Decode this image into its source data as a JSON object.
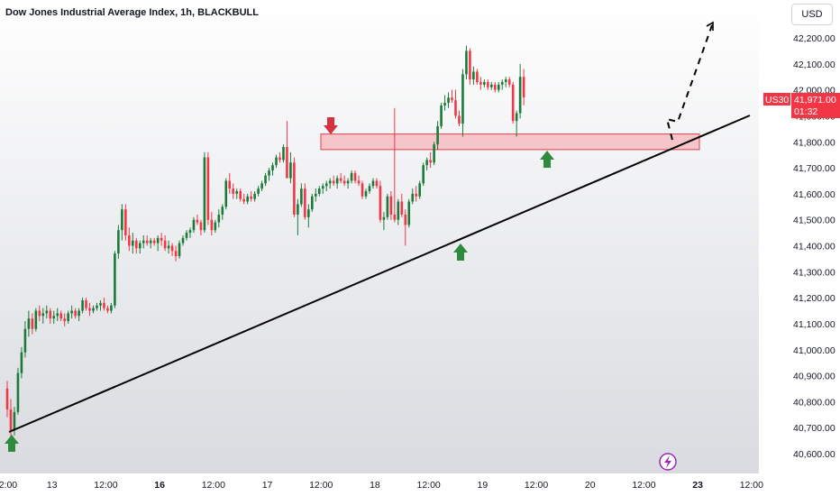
{
  "header": {
    "title": "Dow Jones Industrial Average Index, 1h, BLACKBULL",
    "currency": "USD"
  },
  "price_label": {
    "symbol": "US30",
    "price": "41,971.00",
    "countdown": "01:32",
    "color": "#f23645"
  },
  "colors": {
    "up": "#1b7a3a",
    "down": "#f23645",
    "zone_fill": "#f5b5b9",
    "zone_stroke": "#e04050",
    "trendline": "#000000",
    "arrow_up": "#2e8b3e",
    "arrow_down": "#d93040"
  },
  "icons": {
    "lightning": "lightning-icon"
  },
  "chart_data": {
    "type": "candlestick",
    "title": "Dow Jones Industrial Average Index, 1h, BLACKBULL",
    "ylim": [
      40550,
      42300
    ],
    "y_ticks": [
      "42,200.00",
      "42,100.00",
      "42,000.00",
      "41,900.00",
      "41,800.00",
      "41,700.00",
      "41,600.00",
      "41,500.00",
      "41,400.00",
      "41,300.00",
      "41,200.00",
      "41,100.00",
      "41,000.00",
      "40,900.00",
      "40,800.00",
      "40,700.00",
      "40,600.00"
    ],
    "y_tick_values": [
      42200,
      42100,
      42000,
      41900,
      41800,
      41700,
      41600,
      41500,
      41400,
      41300,
      41200,
      41100,
      41000,
      40900,
      40800,
      40700,
      40600
    ],
    "x_ticks": [
      {
        "label": "12:00",
        "bold": false,
        "idx": 0
      },
      {
        "label": "13",
        "bold": false,
        "idx": 13
      },
      {
        "label": "12:00",
        "bold": false,
        "idx": 28
      },
      {
        "label": "16",
        "bold": true,
        "idx": 43
      },
      {
        "label": "12:00",
        "bold": false,
        "idx": 58
      },
      {
        "label": "17",
        "bold": false,
        "idx": 73
      },
      {
        "label": "12:00",
        "bold": false,
        "idx": 88
      },
      {
        "label": "18",
        "bold": false,
        "idx": 103
      },
      {
        "label": "12:00",
        "bold": false,
        "idx": 118
      },
      {
        "label": "19",
        "bold": false,
        "idx": 133
      },
      {
        "label": "12:00",
        "bold": false,
        "idx": 148
      },
      {
        "label": "20",
        "bold": false,
        "idx": 163
      },
      {
        "label": "12:00",
        "bold": false,
        "idx": 178
      },
      {
        "label": "23",
        "bold": true,
        "idx": 193
      },
      {
        "label": "12:00",
        "bold": false,
        "idx": 208
      }
    ],
    "x_start": 0,
    "x_step": 3.98,
    "candles": [
      [
        40850,
        40880,
        40740,
        40770
      ],
      [
        40770,
        40810,
        40660,
        40690
      ],
      [
        40690,
        40780,
        40670,
        40760
      ],
      [
        40760,
        40930,
        40750,
        40910
      ],
      [
        40910,
        41010,
        40890,
        40990
      ],
      [
        40990,
        41110,
        40970,
        41080
      ],
      [
        41080,
        41150,
        41050,
        41120
      ],
      [
        41120,
        41140,
        41060,
        41080
      ],
      [
        41080,
        41160,
        41070,
        41150
      ],
      [
        41150,
        41170,
        41110,
        41130
      ],
      [
        41130,
        41160,
        41100,
        41140
      ],
      [
        41140,
        41170,
        41120,
        41150
      ],
      [
        41150,
        41160,
        41100,
        41120
      ],
      [
        41120,
        41150,
        41100,
        41130
      ],
      [
        41130,
        41160,
        41110,
        41140
      ],
      [
        41140,
        41150,
        41110,
        41120
      ],
      [
        41120,
        41140,
        41090,
        41110
      ],
      [
        41110,
        41150,
        41100,
        41140
      ],
      [
        41140,
        41170,
        41120,
        41150
      ],
      [
        41150,
        41160,
        41120,
        41130
      ],
      [
        41130,
        41160,
        41110,
        41150
      ],
      [
        41150,
        41200,
        41140,
        41190
      ],
      [
        41190,
        41200,
        41150,
        41160
      ],
      [
        41160,
        41180,
        41130,
        41150
      ],
      [
        41150,
        41170,
        41140,
        41160
      ],
      [
        41160,
        41180,
        41150,
        41170
      ],
      [
        41170,
        41190,
        41150,
        41180
      ],
      [
        41180,
        41200,
        41150,
        41160
      ],
      [
        41160,
        41170,
        41140,
        41150
      ],
      [
        41150,
        41180,
        41140,
        41170
      ],
      [
        41170,
        41380,
        41160,
        41370
      ],
      [
        41370,
        41480,
        41350,
        41460
      ],
      [
        41460,
        41560,
        41420,
        41540
      ],
      [
        41540,
        41560,
        41420,
        41440
      ],
      [
        41440,
        41470,
        41380,
        41400
      ],
      [
        41400,
        41450,
        41370,
        41420
      ],
      [
        41420,
        41430,
        41370,
        41390
      ],
      [
        41390,
        41420,
        41370,
        41410
      ],
      [
        41410,
        41440,
        41390,
        41420
      ],
      [
        41420,
        41440,
        41400,
        41410
      ],
      [
        41410,
        41430,
        41390,
        41420
      ],
      [
        41420,
        41430,
        41400,
        41410
      ],
      [
        41410,
        41440,
        41380,
        41430
      ],
      [
        41430,
        41450,
        41400,
        41420
      ],
      [
        41420,
        41440,
        41380,
        41390
      ],
      [
        41390,
        41420,
        41370,
        41400
      ],
      [
        41400,
        41410,
        41360,
        41380
      ],
      [
        41380,
        41400,
        41340,
        41360
      ],
      [
        41360,
        41420,
        41350,
        41410
      ],
      [
        41410,
        41440,
        41400,
        41430
      ],
      [
        41430,
        41460,
        41420,
        41450
      ],
      [
        41450,
        41470,
        41430,
        41460
      ],
      [
        41460,
        41510,
        41450,
        41500
      ],
      [
        41500,
        41520,
        41480,
        41490
      ],
      [
        41490,
        41500,
        41440,
        41460
      ],
      [
        41460,
        41760,
        41450,
        41740
      ],
      [
        41740,
        41760,
        41480,
        41500
      ],
      [
        41500,
        41530,
        41440,
        41460
      ],
      [
        41460,
        41500,
        41450,
        41490
      ],
      [
        41490,
        41540,
        41470,
        41520
      ],
      [
        41520,
        41560,
        41500,
        41550
      ],
      [
        41550,
        41660,
        41540,
        41650
      ],
      [
        41650,
        41680,
        41600,
        41620
      ],
      [
        41620,
        41640,
        41580,
        41600
      ],
      [
        41600,
        41620,
        41580,
        41610
      ],
      [
        41610,
        41620,
        41570,
        41580
      ],
      [
        41580,
        41600,
        41560,
        41570
      ],
      [
        41570,
        41600,
        41560,
        41590
      ],
      [
        41590,
        41610,
        41570,
        41580
      ],
      [
        41580,
        41610,
        41570,
        41600
      ],
      [
        41600,
        41630,
        41590,
        41620
      ],
      [
        41620,
        41650,
        41610,
        41640
      ],
      [
        41640,
        41680,
        41630,
        41670
      ],
      [
        41670,
        41700,
        41650,
        41690
      ],
      [
        41690,
        41720,
        41670,
        41710
      ],
      [
        41710,
        41750,
        41700,
        41740
      ],
      [
        41740,
        41760,
        41720,
        41730
      ],
      [
        41730,
        41790,
        41720,
        41780
      ],
      [
        41780,
        41880,
        41660,
        41660
      ],
      [
        41660,
        41760,
        41640,
        41720
      ],
      [
        41720,
        41740,
        41510,
        41520
      ],
      [
        41520,
        41580,
        41440,
        41560
      ],
      [
        41560,
        41640,
        41550,
        41620
      ],
      [
        41620,
        41640,
        41500,
        41510
      ],
      [
        41510,
        41560,
        41470,
        41540
      ],
      [
        41540,
        41600,
        41530,
        41590
      ],
      [
        41590,
        41620,
        41570,
        41600
      ],
      [
        41600,
        41630,
        41590,
        41620
      ],
      [
        41620,
        41640,
        41600,
        41630
      ],
      [
        41630,
        41650,
        41610,
        41640
      ],
      [
        41640,
        41660,
        41620,
        41650
      ],
      [
        41650,
        41670,
        41630,
        41640
      ],
      [
        41640,
        41670,
        41620,
        41660
      ],
      [
        41660,
        41680,
        41640,
        41650
      ],
      [
        41650,
        41670,
        41630,
        41640
      ],
      [
        41640,
        41660,
        41620,
        41650
      ],
      [
        41650,
        41690,
        41640,
        41680
      ],
      [
        41680,
        41690,
        41640,
        41650
      ],
      [
        41650,
        41670,
        41630,
        41640
      ],
      [
        41640,
        41650,
        41580,
        41590
      ],
      [
        41590,
        41620,
        41580,
        41610
      ],
      [
        41610,
        41640,
        41600,
        41630
      ],
      [
        41630,
        41660,
        41620,
        41650
      ],
      [
        41650,
        41660,
        41620,
        41630
      ],
      [
        41630,
        41650,
        41490,
        41500
      ],
      [
        41500,
        41530,
        41460,
        41510
      ],
      [
        41510,
        41600,
        41500,
        41590
      ],
      [
        41590,
        41610,
        41500,
        41520
      ],
      [
        41520,
        41930,
        41490,
        41500
      ],
      [
        41500,
        41580,
        41480,
        41570
      ],
      [
        41570,
        41600,
        41510,
        41520
      ],
      [
        41520,
        41540,
        41400,
        41480
      ],
      [
        41480,
        41580,
        41470,
        41570
      ],
      [
        41570,
        41620,
        41560,
        41600
      ],
      [
        41600,
        41630,
        41570,
        41590
      ],
      [
        41590,
        41650,
        41580,
        41640
      ],
      [
        41640,
        41720,
        41630,
        41710
      ],
      [
        41710,
        41740,
        41690,
        41730
      ],
      [
        41730,
        41760,
        41700,
        41720
      ],
      [
        41720,
        41800,
        41710,
        41790
      ],
      [
        41790,
        41880,
        41770,
        41860
      ],
      [
        41860,
        41950,
        41850,
        41940
      ],
      [
        41940,
        41980,
        41920,
        41950
      ],
      [
        41950,
        41990,
        41930,
        41970
      ],
      [
        41970,
        42000,
        41950,
        41960
      ],
      [
        41960,
        42000,
        41890,
        41900
      ],
      [
        41900,
        41920,
        41860,
        41870
      ],
      [
        41870,
        42080,
        41820,
        42060
      ],
      [
        42060,
        42170,
        42040,
        42150
      ],
      [
        42150,
        42160,
        42020,
        42040
      ],
      [
        42040,
        42090,
        42020,
        42070
      ],
      [
        42070,
        42080,
        42020,
        42030
      ],
      [
        42030,
        42050,
        42000,
        42020
      ],
      [
        42020,
        42040,
        42010,
        42030
      ],
      [
        42030,
        42040,
        42000,
        42010
      ],
      [
        42010,
        42030,
        42000,
        42020
      ],
      [
        42020,
        42030,
        41990,
        42000
      ],
      [
        42000,
        42030,
        41990,
        42020
      ],
      [
        42020,
        42040,
        42000,
        42030
      ],
      [
        42030,
        42050,
        42010,
        42040
      ],
      [
        42040,
        42050,
        42010,
        42020
      ],
      [
        42020,
        42030,
        41870,
        41880
      ],
      [
        41880,
        41920,
        41820,
        41910
      ],
      [
        41910,
        42100,
        41890,
        42050
      ],
      [
        42050,
        42080,
        41940,
        41971
      ]
    ],
    "resistance_zone": {
      "top": 41830,
      "bottom": 41770
    },
    "annotations": [
      {
        "type": "arrow_down",
        "color": "#d93040"
      },
      {
        "type": "arrow_up",
        "color": "#2e8b3e"
      },
      {
        "type": "arrow_up",
        "color": "#2e8b3e"
      },
      {
        "type": "arrow_up",
        "color": "#2e8b3e"
      }
    ]
  }
}
